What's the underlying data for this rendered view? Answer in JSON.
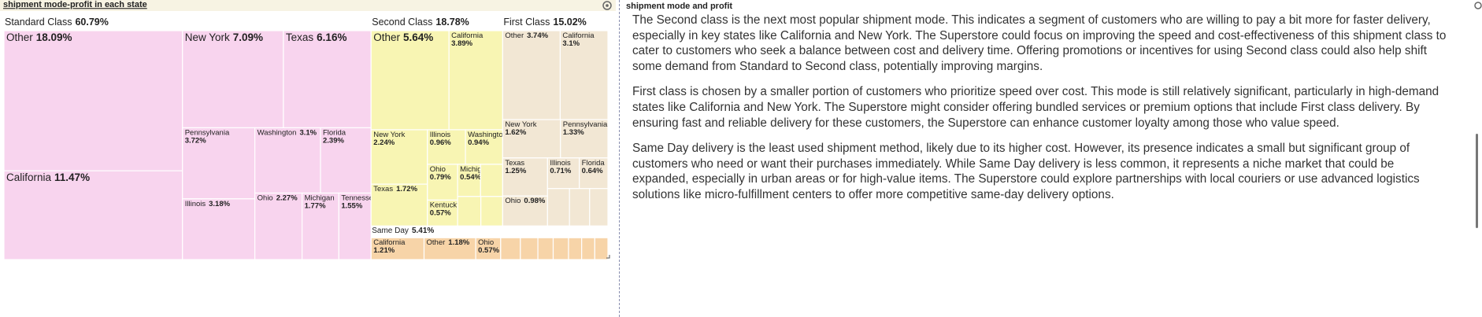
{
  "chart_data": {
    "type": "treemap",
    "title": "shipment mode-profit in each state",
    "colors": [
      "#f8d4ee",
      "#f8f5b3",
      "#f2e7d4",
      "#f7d4a8"
    ],
    "groups": [
      {
        "name": "Standard Class",
        "value": 60.79,
        "value_label": "60.79%",
        "children": [
          {
            "name": "Other",
            "value": 18.09,
            "value_label": "18.09%"
          },
          {
            "name": "California",
            "value": 11.47,
            "value_label": "11.47%"
          },
          {
            "name": "New York",
            "value": 7.09,
            "value_label": "7.09%"
          },
          {
            "name": "Texas",
            "value": 6.16,
            "value_label": "6.16%"
          },
          {
            "name": "Pennsylvania",
            "value": 3.72,
            "value_label": "3.72%"
          },
          {
            "name": "Illinois",
            "value": 3.18,
            "value_label": "3.18%"
          },
          {
            "name": "Washington",
            "value": 3.1,
            "value_label": "3.1%"
          },
          {
            "name": "Florida",
            "value": 2.39,
            "value_label": "2.39%"
          },
          {
            "name": "Ohio",
            "value": 2.27,
            "value_label": "2.27%"
          },
          {
            "name": "Michigan",
            "value": 1.77,
            "value_label": "1.77%"
          },
          {
            "name": "Tennessee",
            "value": 1.55,
            "value_label": "1.55%"
          }
        ]
      },
      {
        "name": "Second Class",
        "value": 18.78,
        "value_label": "18.78%",
        "children": [
          {
            "name": "Other",
            "value": 5.64,
            "value_label": "5.64%"
          },
          {
            "name": "California",
            "value": 3.89,
            "value_label": "3.89%"
          },
          {
            "name": "New York",
            "value": 2.24,
            "value_label": "2.24%"
          },
          {
            "name": "Texas",
            "value": 1.72,
            "value_label": "1.72%"
          },
          {
            "name": "Illinois",
            "value": 0.96,
            "value_label": "0.96%"
          },
          {
            "name": "Washington",
            "value": 0.94,
            "value_label": "0.94%"
          },
          {
            "name": "Ohio",
            "value": 0.79,
            "value_label": "0.79%"
          },
          {
            "name": "Kentucky",
            "value": 0.57,
            "value_label": "0.57%"
          },
          {
            "name": "Michigan",
            "value": 0.54,
            "value_label": "0.54%"
          },
          {
            "name": null,
            "value": 0.52
          },
          {
            "name": null,
            "value": 0.5
          },
          {
            "name": null,
            "value": 0.47
          }
        ]
      },
      {
        "name": "First Class",
        "value": 15.02,
        "value_label": "15.02%",
        "children": [
          {
            "name": "Other",
            "value": 3.74,
            "value_label": "3.74%"
          },
          {
            "name": "California",
            "value": 3.1,
            "value_label": "3.1%"
          },
          {
            "name": "New York",
            "value": 1.62,
            "value_label": "1.62%"
          },
          {
            "name": "Pennsylvania",
            "value": 1.33,
            "value_label": "1.33%"
          },
          {
            "name": "Texas",
            "value": 1.25,
            "value_label": "1.25%"
          },
          {
            "name": "Ohio",
            "value": 0.98,
            "value_label": "0.98%"
          },
          {
            "name": "Illinois",
            "value": 0.71,
            "value_label": "0.71%"
          },
          {
            "name": "Florida",
            "value": 0.64,
            "value_label": "0.64%"
          },
          {
            "name": null,
            "value": 0.6
          },
          {
            "name": null,
            "value": 0.55
          },
          {
            "name": null,
            "value": 0.5
          }
        ]
      },
      {
        "name": "Same Day",
        "value": 5.41,
        "value_label": "5.41%",
        "children": [
          {
            "name": "California",
            "value": 1.21,
            "value_label": "1.21%"
          },
          {
            "name": "Other",
            "value": 1.18,
            "value_label": "1.18%"
          },
          {
            "name": "Ohio",
            "value": 0.57,
            "value_label": "0.57%"
          },
          {
            "name": null,
            "value": 0.45
          },
          {
            "name": null,
            "value": 0.4
          },
          {
            "name": null,
            "value": 0.35
          },
          {
            "name": null,
            "value": 0.35
          },
          {
            "name": null,
            "value": 0.3
          },
          {
            "name": null,
            "value": 0.3
          },
          {
            "name": null,
            "value": 0.3
          }
        ]
      }
    ]
  },
  "text_panel": {
    "title": "shipment mode and profit",
    "paragraphs": [
      "The Second class is the next most popular shipment mode. This indicates a segment of customers who are willing to pay a bit more for faster delivery, especially in key states like California and New York. The Superstore could focus on improving the speed and cost-effectiveness of this shipment class to cater to customers who seek a balance between cost and delivery time. Offering promotions or incentives for using Second class could also help shift some demand from Standard to Second class, potentially improving margins.",
      "First class is chosen by a smaller portion of customers who prioritize speed over cost. This mode is still relatively significant, particularly in high-demand states like California and New York. The Superstore might consider offering bundled services or premium options that include First class delivery. By ensuring fast and reliable delivery for these customers, the Superstore can enhance customer loyalty among those who value speed.",
      "Same Day delivery is the least used shipment method, likely due to its higher cost. However, its presence indicates a small but significant group of customers who need or want their purchases immediately. While Same Day delivery is less common, it represents a niche market that could be expanded, especially in urban areas or for high-value items. The Superstore could explore partnerships with local couriers or use advanced logistics solutions like micro-fulfillment centers to offer more competitive same-day delivery options."
    ]
  }
}
